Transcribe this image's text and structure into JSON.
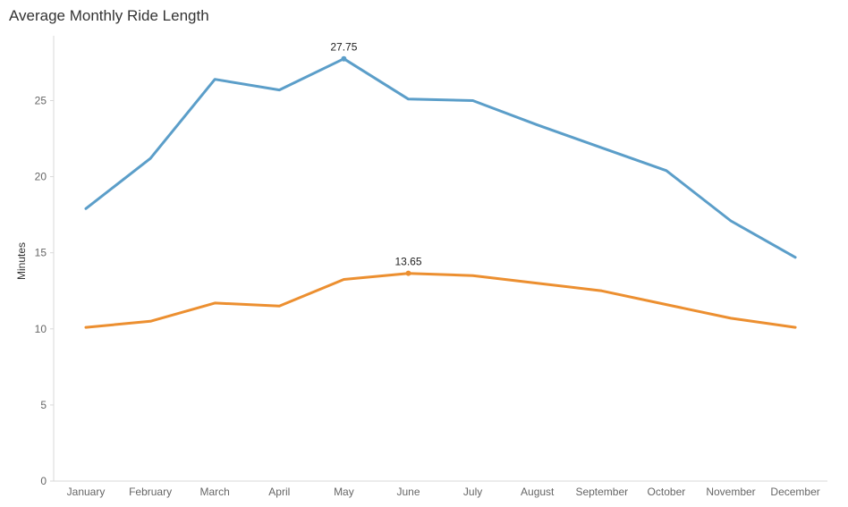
{
  "chart_data": {
    "type": "line",
    "title": "Average Monthly Ride Length",
    "xlabel": "",
    "ylabel": "Minutes",
    "categories": [
      "January",
      "February",
      "March",
      "April",
      "May",
      "June",
      "July",
      "August",
      "September",
      "October",
      "November",
      "December"
    ],
    "ylim": [
      0,
      29
    ],
    "yticks": [
      0,
      5,
      10,
      15,
      20,
      25
    ],
    "grid": false,
    "legend": "none",
    "series": [
      {
        "color": "#5b9ec9",
        "values": [
          17.9,
          21.2,
          26.4,
          25.7,
          27.75,
          25.1,
          25.0,
          23.4,
          21.9,
          20.4,
          17.1,
          14.7
        ]
      },
      {
        "color": "#ec8f30",
        "values": [
          10.1,
          10.5,
          11.7,
          11.5,
          13.25,
          13.65,
          13.5,
          13.0,
          12.5,
          11.6,
          10.7,
          10.1
        ]
      }
    ],
    "annotations": [
      {
        "series": 0,
        "index": 4,
        "text": "27.75"
      },
      {
        "series": 1,
        "index": 5,
        "text": "13.65"
      }
    ]
  }
}
